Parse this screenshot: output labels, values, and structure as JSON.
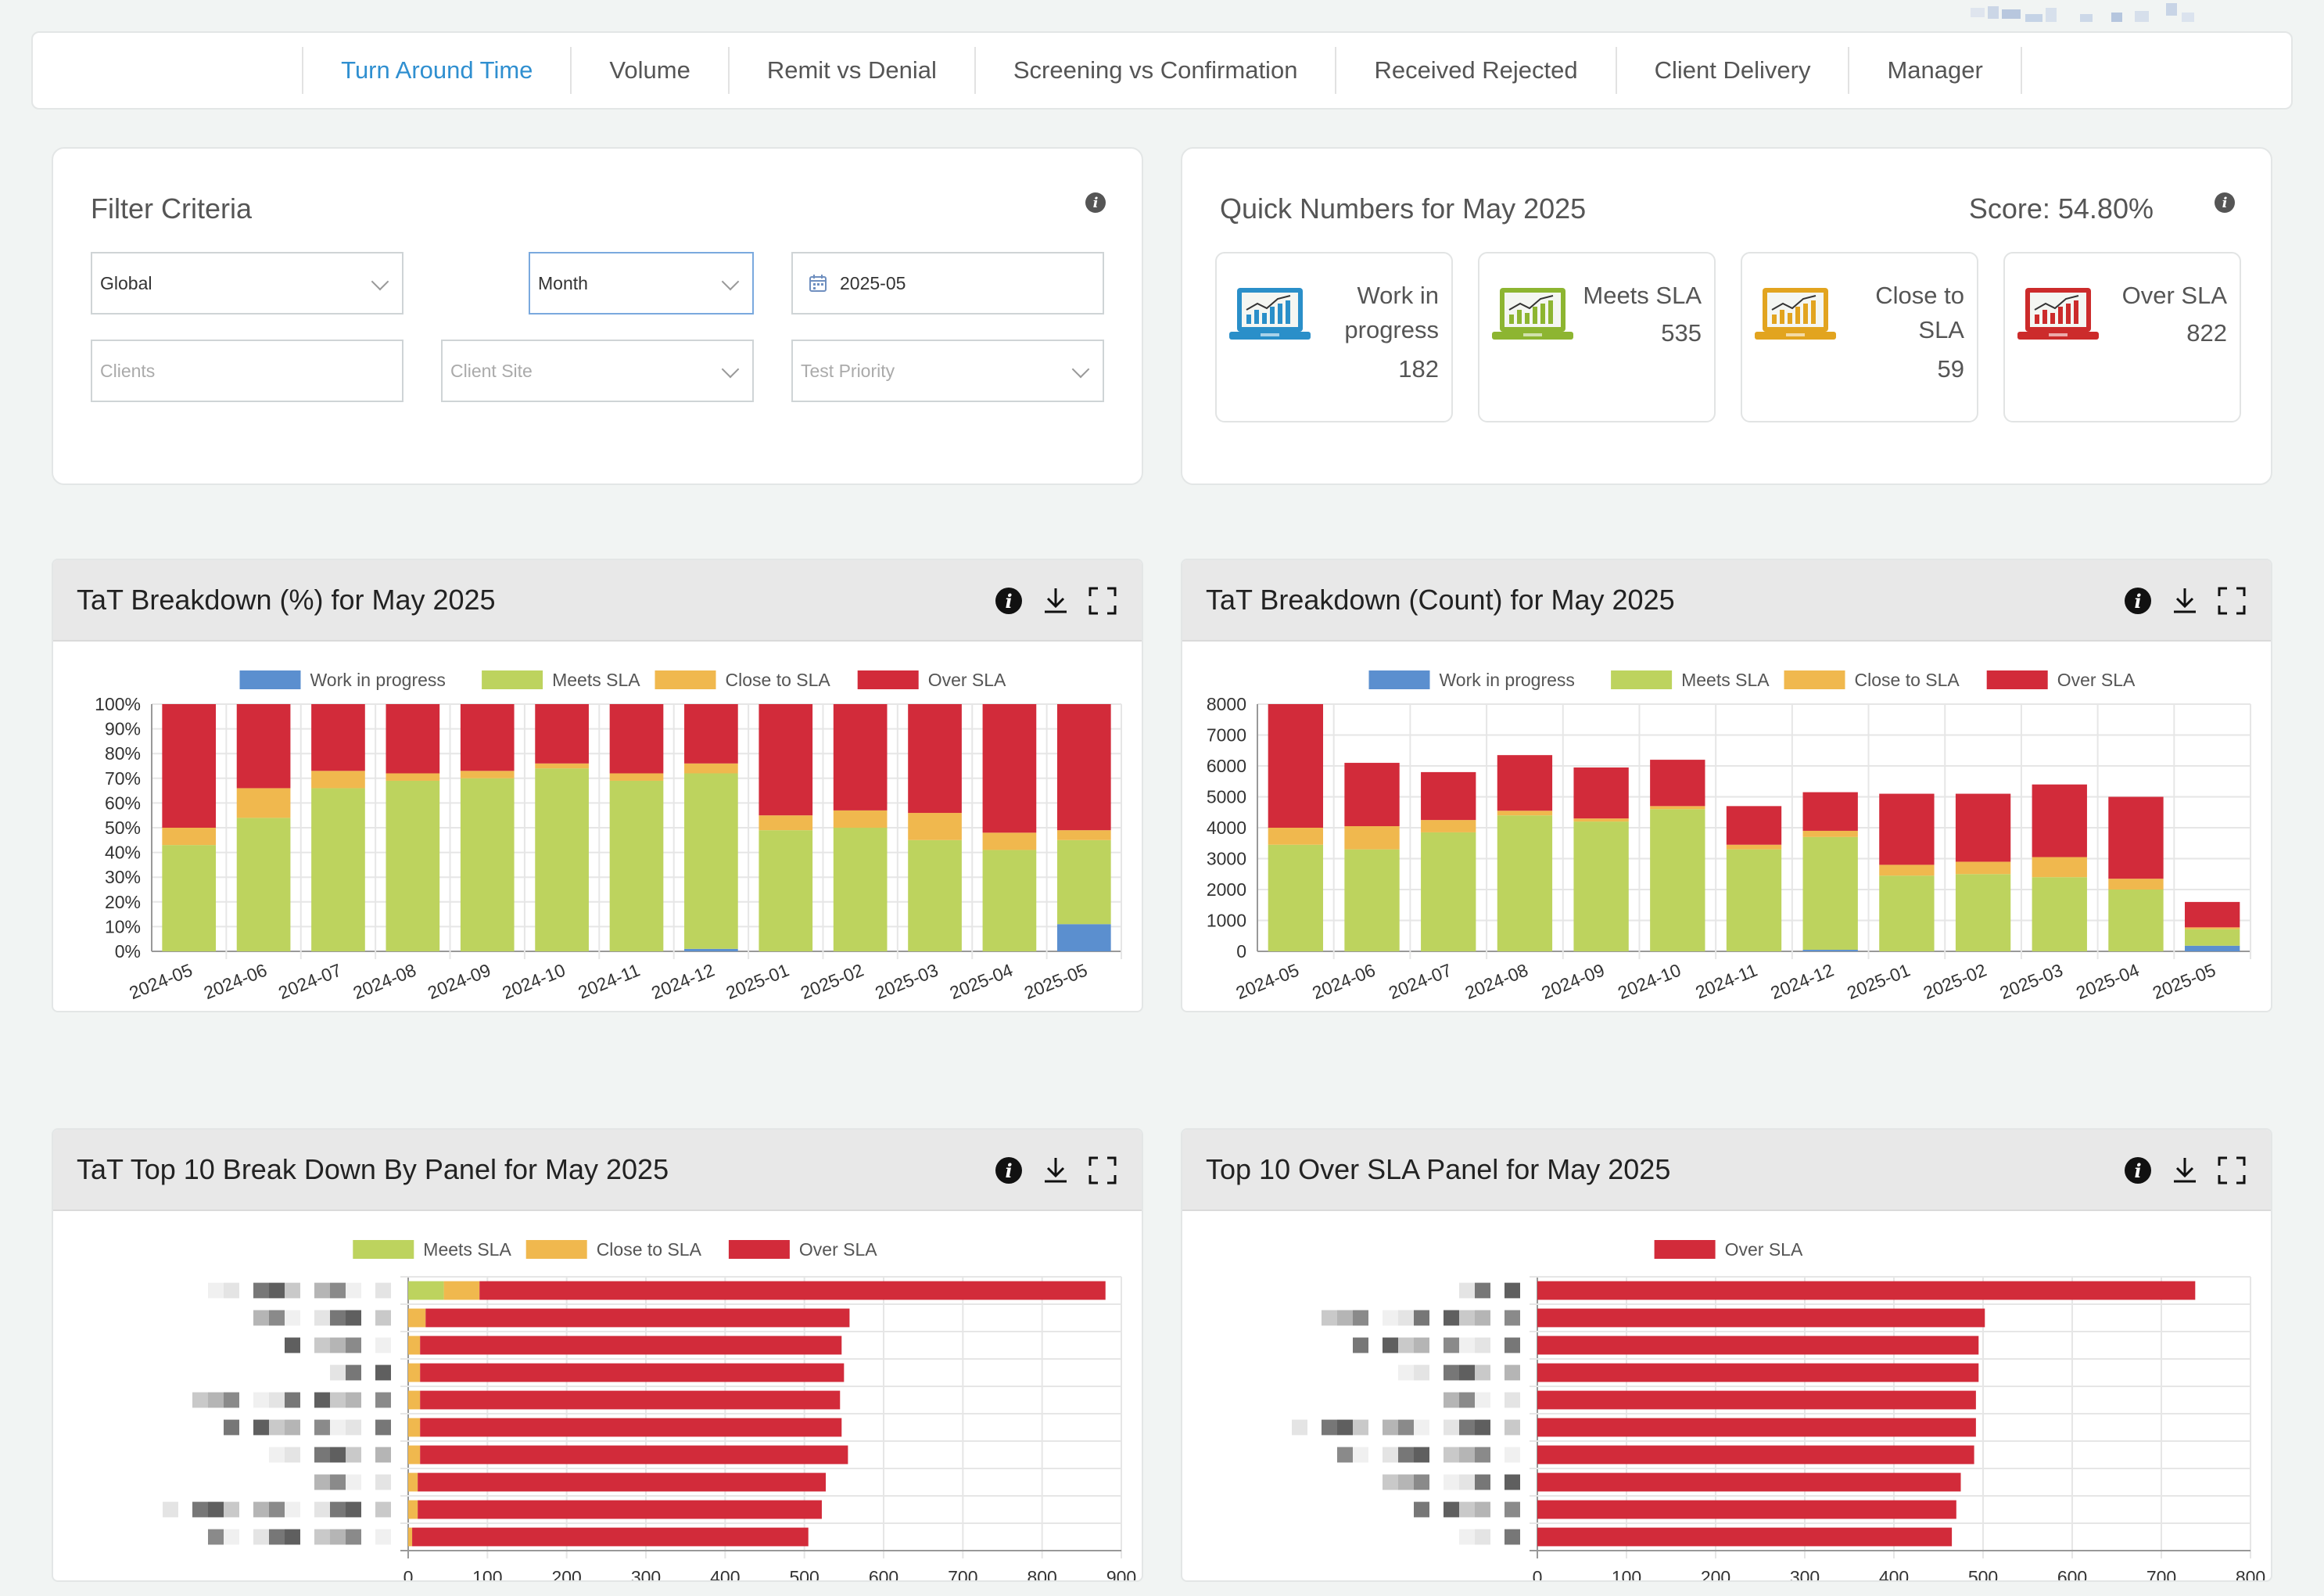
{
  "nav": {
    "items": [
      {
        "label": "Turn Around Time",
        "active": true
      },
      {
        "label": "Volume",
        "active": false
      },
      {
        "label": "Remit vs Denial",
        "active": false
      },
      {
        "label": "Screening vs Confirmation",
        "active": false
      },
      {
        "label": "Received Rejected",
        "active": false
      },
      {
        "label": "Client Delivery",
        "active": false
      },
      {
        "label": "Manager",
        "active": false
      }
    ]
  },
  "filter": {
    "title": "Filter Criteria",
    "scope": "Global",
    "period": "Month",
    "date": "2025-05",
    "clients_placeholder": "Clients",
    "client_site_placeholder": "Client Site",
    "test_priority_placeholder": "Test Priority"
  },
  "quick": {
    "title": "Quick Numbers for May 2025",
    "score": "Score: 54.80%",
    "boxes": [
      {
        "label_1": "Work in",
        "label_2": "progress",
        "value": "182",
        "color": "#2a8fc9"
      },
      {
        "label_1": "Meets SLA",
        "label_2": "",
        "value": "535",
        "color": "#8db531"
      },
      {
        "label_1": "Close to",
        "label_2": "SLA",
        "value": "59",
        "color": "#e2a41f"
      },
      {
        "label_1": "Over SLA",
        "label_2": "",
        "value": "822",
        "color": "#cc2b2b"
      }
    ]
  },
  "colors": {
    "wip": "#5b8fcf",
    "meets": "#bdd35e",
    "close": "#f0b84e",
    "over": "#d22b3a"
  },
  "panels": {
    "pct_title": "TaT Breakdown (%) for May 2025",
    "count_title": "TaT Breakdown (Count) for May 2025",
    "panel_title": "TaT Top 10 Break Down By Panel for May 2025",
    "oversla_title": "Top 10 Over SLA Panel for May 2025"
  },
  "chart_data": [
    {
      "id": "pct",
      "type": "bar",
      "stacked": true,
      "title": "TaT Breakdown (%) for May 2025",
      "legend": [
        "Work in progress",
        "Meets SLA",
        "Close to SLA",
        "Over SLA"
      ],
      "categories": [
        "2024-05",
        "2024-06",
        "2024-07",
        "2024-08",
        "2024-09",
        "2024-10",
        "2024-11",
        "2024-12",
        "2025-01",
        "2025-02",
        "2025-03",
        "2025-04",
        "2025-05"
      ],
      "series": [
        {
          "name": "Work in progress",
          "values": [
            0,
            0,
            0,
            0,
            0,
            0,
            0,
            1,
            0,
            0,
            0,
            0,
            11
          ]
        },
        {
          "name": "Meets SLA",
          "values": [
            43,
            54,
            66,
            69,
            70,
            74,
            69,
            71,
            49,
            50,
            45,
            41,
            34
          ]
        },
        {
          "name": "Close to SLA",
          "values": [
            7,
            12,
            7,
            3,
            3,
            2,
            3,
            4,
            6,
            7,
            11,
            7,
            4
          ]
        },
        {
          "name": "Over SLA",
          "values": [
            50,
            34,
            27,
            28,
            27,
            24,
            28,
            24,
            45,
            43,
            44,
            52,
            51
          ]
        }
      ],
      "yticks": [
        "0%",
        "10%",
        "20%",
        "30%",
        "40%",
        "50%",
        "60%",
        "70%",
        "80%",
        "90%",
        "100%"
      ],
      "ylim": [
        0,
        100
      ]
    },
    {
      "id": "count",
      "type": "bar",
      "stacked": true,
      "title": "TaT Breakdown (Count) for May 2025",
      "legend": [
        "Work in progress",
        "Meets SLA",
        "Close to SLA",
        "Over SLA"
      ],
      "categories": [
        "2024-05",
        "2024-06",
        "2024-07",
        "2024-08",
        "2024-09",
        "2024-10",
        "2024-11",
        "2024-12",
        "2025-01",
        "2025-02",
        "2025-03",
        "2025-04",
        "2025-05"
      ],
      "series": [
        {
          "name": "Work in progress",
          "values": [
            0,
            0,
            0,
            0,
            0,
            0,
            0,
            50,
            0,
            0,
            0,
            0,
            182
          ]
        },
        {
          "name": "Meets SLA",
          "values": [
            3450,
            3300,
            3850,
            4400,
            4200,
            4600,
            3300,
            3650,
            2450,
            2500,
            2400,
            2000,
            535
          ]
        },
        {
          "name": "Close to SLA",
          "values": [
            550,
            750,
            400,
            150,
            100,
            100,
            150,
            200,
            350,
            400,
            650,
            350,
            59
          ]
        },
        {
          "name": "Over SLA",
          "values": [
            4000,
            2050,
            1550,
            1800,
            1650,
            1500,
            1250,
            1250,
            2300,
            2200,
            2350,
            2650,
            822
          ]
        }
      ],
      "yticks": [
        "0",
        "1000",
        "2000",
        "3000",
        "4000",
        "5000",
        "6000",
        "7000",
        "8000"
      ],
      "ylim": [
        0,
        8000
      ]
    },
    {
      "id": "panel",
      "type": "bar",
      "horizontal": true,
      "stacked": true,
      "title": "TaT Top 10 Break Down By Panel for May 2025",
      "legend": [
        "Meets SLA",
        "Close to SLA",
        "Over SLA"
      ],
      "series": [
        {
          "name": "Meets SLA",
          "values": [
            45,
            0,
            0,
            0,
            0,
            0,
            0,
            0,
            0,
            0
          ]
        },
        {
          "name": "Close to SLA",
          "values": [
            45,
            22,
            15,
            15,
            15,
            15,
            15,
            12,
            12,
            5
          ]
        },
        {
          "name": "Over SLA",
          "values": [
            790,
            535,
            532,
            535,
            530,
            532,
            540,
            515,
            510,
            500
          ]
        }
      ],
      "xticks": [
        "0",
        "100",
        "200",
        "300",
        "400",
        "500",
        "600",
        "700",
        "800",
        "900"
      ],
      "xlim": [
        0,
        900
      ]
    },
    {
      "id": "oversla",
      "type": "bar",
      "horizontal": true,
      "title": "Top 10 Over SLA Panel for May 2025",
      "legend": [
        "Over SLA"
      ],
      "series": [
        {
          "name": "Over SLA",
          "values": [
            738,
            502,
            495,
            495,
            492,
            492,
            490,
            475,
            470,
            465
          ]
        }
      ],
      "xticks": [
        "0",
        "100",
        "200",
        "300",
        "400",
        "500",
        "600",
        "700",
        "800"
      ],
      "xlim": [
        0,
        800
      ]
    }
  ]
}
